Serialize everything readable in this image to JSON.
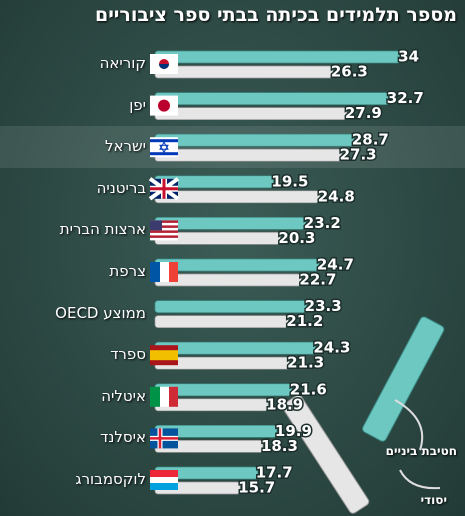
{
  "chart_data": {
    "type": "bar",
    "orientation": "horizontal",
    "title": "מספר תלמידים בכיתה בבתי ספר ציבוריים",
    "categories": [
      "קוריאה",
      "יפן",
      "ישראל",
      "בריטניה",
      "ארצות הברית",
      "צרפת",
      "ממוצע OECD",
      "ספרד",
      "איטליה",
      "איסלנד",
      "לוקסמבורג"
    ],
    "series": [
      {
        "name": "חטיבת ביניים",
        "color": "#6ec8c2",
        "values": [
          34,
          32.7,
          28.7,
          19.5,
          23.2,
          24.7,
          23.3,
          24.3,
          21.6,
          19.9,
          17.7
        ]
      },
      {
        "name": "יסודי",
        "color": "#e6e6e6",
        "values": [
          26.3,
          27.9,
          27.3,
          24.8,
          20.3,
          22.7,
          21.2,
          21.3,
          18.9,
          18.3,
          15.7
        ]
      }
    ]
  }
}
